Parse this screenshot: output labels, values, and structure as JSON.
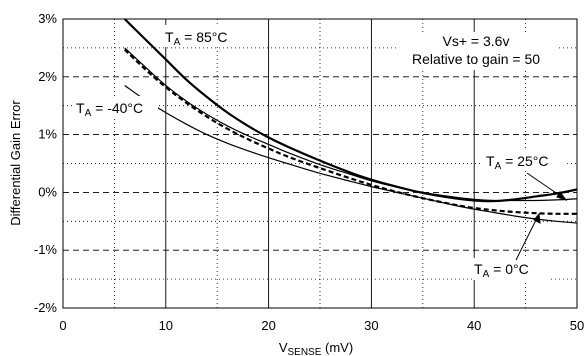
{
  "chart_data": {
    "type": "line",
    "xlabel": "V",
    "xlabel_sub": "SENSE",
    "xlabel_unit": " (mV)",
    "ylabel": "Differential Gain Error",
    "xlim": [
      0,
      50
    ],
    "ylim": [
      -2,
      3
    ],
    "x_ticks": [
      "0",
      "10",
      "20",
      "30",
      "40",
      "50"
    ],
    "y_ticks": [
      "-2%",
      "-1%",
      "0%",
      "1%",
      "2%",
      "3%"
    ],
    "x_major_grid": "solid",
    "y_major_grid": "dashed",
    "x_minor_gridlines": [
      5,
      15,
      25,
      35,
      45
    ],
    "y_minor_gridlines": [
      -1.5,
      -0.5,
      0.5,
      1.5,
      2.5
    ],
    "minor_grid": "dotted",
    "series": [
      {
        "name": "T_A = 85°C",
        "style": "bold",
        "x": [
          6,
          8,
          10,
          12,
          14,
          16,
          18,
          20,
          22,
          25,
          28,
          30,
          32,
          35,
          38,
          40,
          42,
          44,
          46,
          48,
          50
        ],
        "y": [
          3.0,
          2.65,
          2.3,
          1.95,
          1.65,
          1.38,
          1.15,
          0.95,
          0.78,
          0.55,
          0.34,
          0.22,
          0.12,
          -0.01,
          -0.1,
          -0.14,
          -0.15,
          -0.12,
          -0.07,
          -0.02,
          0.05
        ]
      },
      {
        "name": "T_A = 25°C",
        "style": "thin",
        "x": [
          6,
          8,
          10,
          12,
          14,
          16,
          18,
          20,
          22,
          25,
          28,
          30,
          32,
          35,
          38,
          40,
          42,
          44,
          46,
          48,
          50
        ],
        "y": [
          2.5,
          2.17,
          1.85,
          1.58,
          1.35,
          1.15,
          0.98,
          0.83,
          0.68,
          0.48,
          0.31,
          0.2,
          0.11,
          0.0,
          -0.08,
          -0.12,
          -0.14,
          -0.14,
          -0.14,
          -0.13,
          -0.11
        ]
      },
      {
        "name": "T_A = 0°C",
        "style": "dashed",
        "x": [
          6,
          8,
          10,
          12,
          14,
          16,
          18,
          20,
          22,
          25,
          28,
          30,
          32,
          35,
          38,
          40,
          42,
          44,
          46,
          48,
          50
        ],
        "y": [
          2.47,
          2.13,
          1.82,
          1.55,
          1.31,
          1.1,
          0.92,
          0.76,
          0.61,
          0.42,
          0.24,
          0.13,
          0.03,
          -0.1,
          -0.21,
          -0.27,
          -0.31,
          -0.34,
          -0.36,
          -0.37,
          -0.37
        ]
      },
      {
        "name": "T_A = -40°C",
        "style": "thin",
        "x": [
          6,
          8,
          10,
          12,
          14,
          16,
          18,
          20,
          22,
          25,
          28,
          30,
          32,
          35,
          38,
          40,
          42,
          44,
          46,
          48,
          50
        ],
        "y": [
          1.85,
          1.6,
          1.38,
          1.18,
          1.0,
          0.85,
          0.72,
          0.6,
          0.49,
          0.33,
          0.19,
          0.1,
          0.02,
          -0.1,
          -0.22,
          -0.29,
          -0.35,
          -0.41,
          -0.46,
          -0.5,
          -0.53
        ]
      }
    ],
    "annotations": {
      "t85": {
        "prefix": "T",
        "sub": "A",
        "rest": " = 85°C"
      },
      "tm40": {
        "prefix": "T",
        "sub": "A",
        "rest": " = -40°C"
      },
      "t25": {
        "prefix": "T",
        "sub": "A",
        "rest": " = 25°C"
      },
      "t0": {
        "prefix": "T",
        "sub": "A",
        "rest": " = 0°C"
      },
      "vs_line1": "Vs+ = 3.6v",
      "vs_line2": "Relative to gain = 50"
    },
    "colors": {
      "axis": "#000000",
      "grid": "#000000",
      "series": "#000000",
      "background": "#ffffff"
    }
  }
}
